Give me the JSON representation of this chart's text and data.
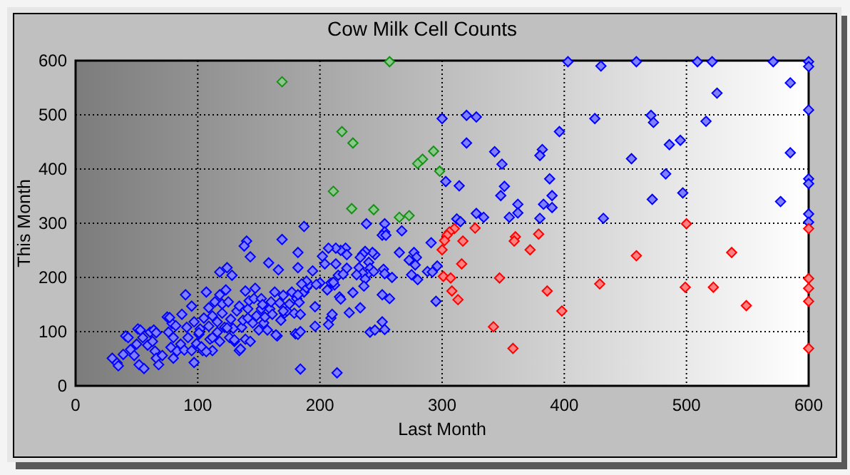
{
  "chart_data": {
    "type": "scatter",
    "title": "Cow Milk Cell Counts",
    "xlabel": "Last Month",
    "ylabel": "This Month",
    "xlim": [
      0,
      600
    ],
    "ylim": [
      0,
      600
    ],
    "xticks": [
      0,
      100,
      200,
      300,
      400,
      500,
      600
    ],
    "yticks": [
      0,
      100,
      200,
      300,
      400,
      500,
      600
    ],
    "grid": true,
    "marker": "diamond",
    "series": [
      {
        "color": "#0000ff",
        "x": [
          30,
          34,
          39,
          41,
          45,
          48,
          51,
          52,
          56,
          50,
          55,
          59,
          61,
          64,
          63,
          65,
          66,
          68,
          71,
          75,
          76,
          79,
          80,
          78,
          80,
          83,
          86,
          87,
          89,
          90,
          91,
          92,
          95,
          95,
          97,
          97,
          99,
          101,
          102,
          104,
          105,
          107,
          109,
          109,
          110,
          112,
          112,
          114,
          116,
          116,
          118,
          120,
          120,
          122,
          123,
          125,
          126,
          127,
          129,
          130,
          132,
          134,
          134,
          136,
          137,
          139,
          139,
          141,
          142,
          143,
          145,
          146,
          147,
          148,
          150,
          152,
          152,
          154,
          155,
          157,
          159,
          160,
          161,
          163,
          165,
          167,
          168,
          170,
          171,
          173,
          175,
          177,
          179,
          181,
          183,
          184,
          187,
          189,
          191,
          196,
          35,
          43,
          53,
          66,
          77,
          82,
          101,
          103,
          107,
          112,
          118,
          124,
          130,
          135,
          141,
          153,
          164,
          170,
          180,
          182,
          140,
          138,
          143,
          169,
          187,
          182,
          182,
          166,
          158,
          118,
          124,
          128,
          300,
          320,
          328,
          320,
          343,
          349,
          382,
          380,
          388,
          303,
          314,
          351,
          348,
          362,
          362,
          355,
          390,
          390,
          383,
          380,
          328,
          334,
          312,
          315,
          238,
          253,
          253,
          251,
          254,
          267,
          291,
          265,
          277,
          279,
          276,
          273,
          278,
          288,
          296,
          292,
          259,
          275,
          280,
          252,
          253,
          245,
          243,
          237,
          235,
          233,
          232,
          240,
          241,
          239,
          235,
          230,
          244,
          237,
          221,
          217,
          222,
          213,
          207,
          202,
          204,
          213,
          215,
          209,
          212,
          222,
          219,
          182,
          194,
          189,
          185,
          200,
          197,
          206,
          211,
          216,
          217,
          227,
          236,
          224,
          233,
          196,
          209,
          207,
          210,
          184,
          251,
          257,
          241,
          245,
          253,
          251,
          295,
          184,
          214,
          403,
          430,
          459,
          509,
          521,
          571,
          600,
          600,
          585,
          525,
          600,
          425,
          471,
          473,
          516,
          396,
          486,
          495,
          455,
          585,
          483,
          600,
          600,
          472,
          497,
          577,
          432,
          600,
          600
        ],
        "values": [
          51,
          42,
          58,
          92,
          67,
          56,
          105,
          39,
          32,
          77,
          89,
          75,
          99,
          103,
          82,
          64,
          51,
          39,
          56,
          127,
          99,
          115,
          89,
          71,
          51,
          64,
          77,
          132,
          66,
          168,
          108,
          89,
          65,
          147,
          118,
          43,
          78,
          95,
          105,
          65,
          125,
          173,
          144,
          110,
          86,
          65,
          129,
          155,
          99,
          118,
          82,
          134,
          151,
          108,
          177,
          155,
          89,
          123,
          106,
          82,
          138,
          147,
          65,
          108,
          121,
          175,
          86,
          142,
          157,
          82,
          116,
          161,
          180,
          129,
          103,
          142,
          161,
          116,
          127,
          103,
          142,
          155,
          132,
          173,
          92,
          153,
          121,
          167,
          134,
          138,
          151,
          173,
          134,
          161,
          154,
          132,
          173,
          181,
          187,
          110,
          37,
          89,
          103,
          98,
          126,
          111,
          98,
          72,
          63,
          89,
          168,
          107,
          85,
          68,
          125,
          150,
          94,
          138,
          96,
          168,
          267,
          258,
          238,
          270,
          294,
          246,
          218,
          214,
          227,
          210,
          218,
          204,
          493,
          499,
          496,
          448,
          432,
          409,
          436,
          425,
          382,
          377,
          369,
          368,
          351,
          335,
          319,
          311,
          351,
          329,
          335,
          309,
          318,
          311,
          308,
          303,
          299,
          299,
          284,
          278,
          278,
          286,
          264,
          246,
          246,
          237,
          228,
          232,
          223,
          211,
          221,
          210,
          200,
          205,
          196,
          215,
          207,
          242,
          246,
          248,
          243,
          237,
          218,
          228,
          217,
          206,
          208,
          205,
          211,
          197,
          254,
          250,
          242,
          254,
          254,
          239,
          225,
          225,
          204,
          190,
          186,
          217,
          206,
          95,
          212,
          193,
          188,
          190,
          187,
          177,
          191,
          164,
          160,
          172,
          184,
          135,
          144,
          146,
          125,
          113,
          132,
          100,
          168,
          161,
          99,
          103,
          104,
          118,
          156,
          31,
          24,
          598,
          590,
          598,
          598,
          598,
          598,
          598,
          589,
          559,
          540,
          509,
          493,
          499,
          486,
          488,
          469,
          445,
          453,
          419,
          430,
          391,
          382,
          373,
          344,
          356,
          340,
          309,
          317,
          302
        ]
      },
      {
        "color": "#169016",
        "x": [
          169,
          257,
          218,
          227,
          293,
          284,
          280,
          298,
          211,
          226,
          244,
          265,
          273
        ],
        "values": [
          561,
          598,
          469,
          448,
          433,
          418,
          410,
          396,
          359,
          327,
          325,
          311,
          314
        ]
      },
      {
        "color": "#ff0000",
        "x": [
          310,
          306,
          304,
          302,
          300,
          317,
          327,
          301,
          307,
          316,
          308,
          313,
          347,
          342,
          358,
          360,
          359,
          379,
          372,
          386,
          398,
          500,
          459,
          429,
          499,
          522,
          537,
          549,
          600,
          600,
          600,
          600,
          600
        ],
        "values": [
          290,
          284,
          278,
          268,
          251,
          267,
          291,
          202,
          199,
          225,
          175,
          159,
          199,
          109,
          69,
          275,
          267,
          280,
          251,
          175,
          138,
          299,
          240,
          188,
          182,
          182,
          246,
          148,
          290,
          198,
          180,
          156,
          69
        ]
      }
    ]
  }
}
